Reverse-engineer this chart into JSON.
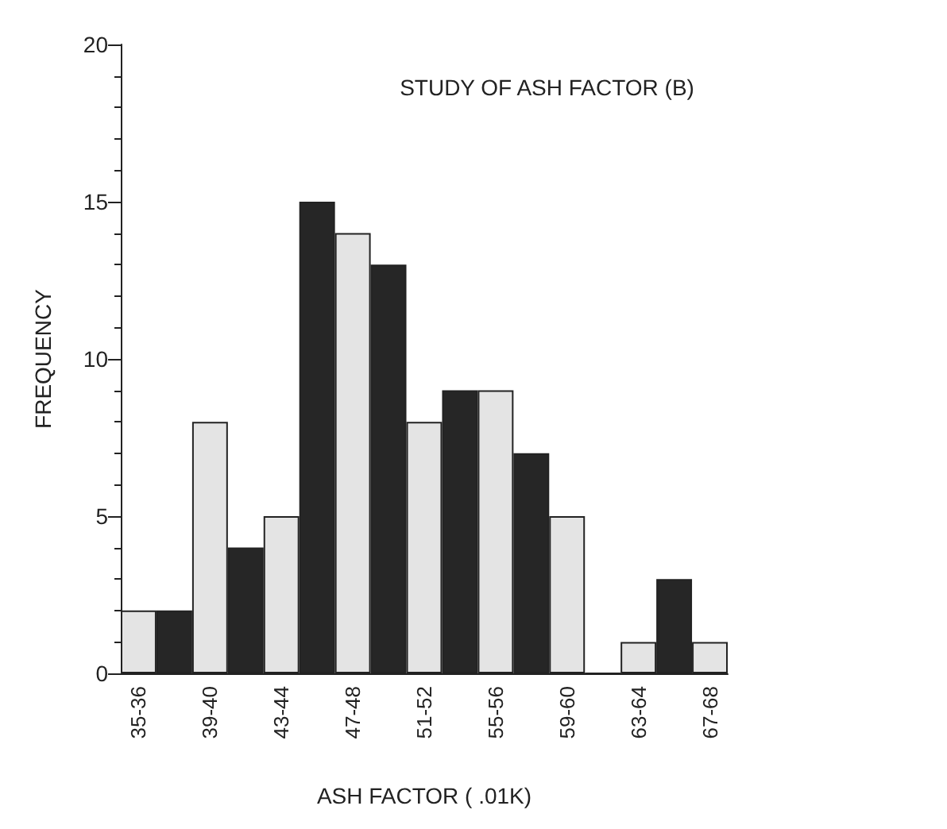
{
  "chart_data": {
    "type": "bar",
    "xlabel": "ASH FACTOR ( .01K)",
    "ylabel": "FREQUENCY",
    "annotations": [
      "STUDY OF ASH FACTOR (B)"
    ],
    "categories": [
      "35-36",
      null,
      "39-40",
      null,
      "43-44",
      null,
      "47-48",
      null,
      "51-52",
      null,
      "55-56",
      null,
      "59-60",
      null,
      "63-64",
      null,
      "67-68"
    ],
    "values": [
      2,
      2,
      8,
      4,
      5,
      15,
      14,
      13,
      8,
      9,
      9,
      7,
      5,
      0,
      1,
      3,
      1
    ],
    "colors": [
      "#e4e4e4",
      "#262626",
      "#e4e4e4",
      "#262626",
      "#e4e4e4",
      "#262626",
      "#e4e4e4",
      "#262626",
      "#e4e4e4",
      "#262626",
      "#e4e4e4",
      "#262626",
      "#e4e4e4",
      "#262626",
      "#e4e4e4",
      "#262626",
      "#e4e4e4"
    ],
    "ylim": [
      0,
      20
    ],
    "yticks": [
      0,
      5,
      10,
      15,
      20
    ],
    "grid": false
  }
}
